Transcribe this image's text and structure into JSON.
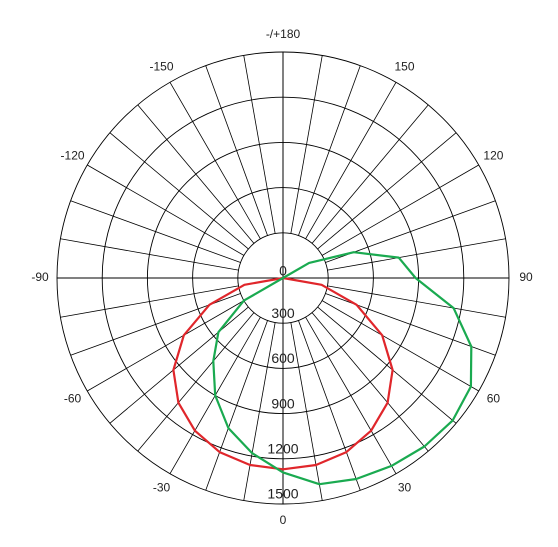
{
  "chart_data": {
    "type": "polar",
    "rlim": [
      0,
      1500
    ],
    "rticks": [
      0,
      300,
      600,
      900,
      1200,
      1500
    ],
    "angle_ticks": [
      {
        "value": 180,
        "label": "-/+180"
      },
      150,
      120,
      90,
      60,
      30,
      0,
      -30,
      -60,
      -90,
      -120,
      -150
    ],
    "series": [
      {
        "color": "#e0262b",
        "x": [
          -90,
          -80,
          -70,
          -60,
          -50,
          -40,
          -30,
          -20,
          -10,
          0,
          10,
          20,
          30,
          40,
          50,
          60,
          70,
          80,
          90
        ],
        "values": [
          0,
          260,
          520,
          760,
          950,
          1080,
          1170,
          1230,
          1260,
          1270,
          1260,
          1230,
          1170,
          1080,
          950,
          760,
          520,
          260,
          0
        ]
      },
      {
        "color": "#1aaa50",
        "x": [
          -60,
          -50,
          -40,
          -30,
          -20,
          -10,
          0,
          10,
          20,
          30,
          40,
          50,
          60,
          70,
          80,
          90,
          100,
          110,
          120
        ],
        "values": [
          300,
          560,
          720,
          900,
          1060,
          1180,
          1290,
          1390,
          1420,
          1440,
          1460,
          1470,
          1440,
          1330,
          1150,
          880,
          780,
          500,
          200
        ]
      }
    ]
  }
}
